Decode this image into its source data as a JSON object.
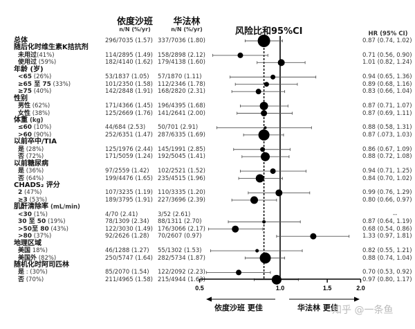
{
  "columns": {
    "edoxaban": {
      "title": "依度沙班",
      "sub": "n/N (%/yr)"
    },
    "warfarin": {
      "title": "华法林",
      "sub": "n/N (%/yr)"
    },
    "plot_title": "风险比和95%CI",
    "hr": {
      "title": "HR (95%  CI)"
    }
  },
  "rows": [
    {
      "label": "总体",
      "pct": "",
      "type": "group",
      "edo": "296/7035  (1.57)",
      "war": "337/7036  (1.80)",
      "hr_text": "0.87 (0.74, 1.02)",
      "hr": 0.87,
      "lo": 0.74,
      "hi": 1.02,
      "size": 9
    },
    {
      "label": "随后化时维生素K拮抗剂",
      "pct": "",
      "type": "group"
    },
    {
      "label": "未用过",
      "pct": "(41%)",
      "type": "sub",
      "edo": "114/2895  (1.49)",
      "war": "158/2898  (2.12)",
      "hr_text": "0.71 (0.56, 0.90)",
      "hr": 0.71,
      "lo": 0.56,
      "hi": 0.9,
      "size": 4
    },
    {
      "label": "使用过",
      "pct": " (59%)",
      "type": "sub",
      "edo": "182/4140  (1.62)",
      "war": "179/4138  (1.60)",
      "hr_text": "1.01 (0.82, 1.24)",
      "hr": 1.01,
      "lo": 0.82,
      "hi": 1.24,
      "size": 5
    },
    {
      "label": "年龄 (岁)",
      "pct": "",
      "type": "group"
    },
    {
      "label": "<65",
      "pct": " (26%)",
      "type": "sub",
      "edo": "53/1837  (1.05)",
      "war": "57/1870  (1.11)",
      "hr_text": "0.94 (0.65, 1.36)",
      "hr": 0.94,
      "lo": 0.65,
      "hi": 1.36,
      "size": 3.5
    },
    {
      "label": "≥65 至 75",
      "pct": " (33%)",
      "type": "sub",
      "edo": "101/2350  (1.58)",
      "war": "112/2346  (1.78)",
      "hr_text": "0.89 (0.68, 1.16)",
      "hr": 0.89,
      "lo": 0.68,
      "hi": 1.16,
      "size": 3.5
    },
    {
      "label": "≥75",
      "pct": " (40%)",
      "type": "sub",
      "edo": "142/2848  (1.91)",
      "war": "168/2820  (2.31)",
      "hr_text": "0.83 (0.66, 1.04)",
      "hr": 0.83,
      "lo": 0.66,
      "hi": 1.04,
      "size": 4
    },
    {
      "label": "性别",
      "pct": "",
      "type": "group"
    },
    {
      "label": "男性",
      "pct": " (62%)",
      "type": "sub",
      "edo": "171/4366  (1.45)",
      "war": "196/4395  (1.68)",
      "hr_text": "0.87 (0.71, 1.07)",
      "hr": 0.87,
      "lo": 0.71,
      "hi": 1.07,
      "size": 6
    },
    {
      "label": "女性",
      "pct": " (38%)",
      "type": "sub",
      "edo": "125/2669  (1.76)",
      "war": "141/2641  (2.00)",
      "hr_text": "0.87 (0.69, 1.11)",
      "hr": 0.87,
      "lo": 0.69,
      "hi": 1.11,
      "size": 4.5
    },
    {
      "label": "体重",
      "pct": " (kg)",
      "type": "group"
    },
    {
      "label": "≤60",
      "pct": " (10%)",
      "type": "sub",
      "edo": "44/684  (2.53)",
      "war": "50/701  (2.91)",
      "hr_text": "0.88 (0.58, 1.31)",
      "hr": 0.88,
      "lo": 0.58,
      "hi": 1.31,
      "size": 2
    },
    {
      "label": ">60",
      "pct": " (90%)",
      "type": "sub",
      "edo": "252/6351  (1.47)",
      "war": "287/6335  (1.69)",
      "hr_text": "0.87 (.073, 1.03)",
      "hr": 0.87,
      "lo": 0.73,
      "hi": 1.03,
      "size": 8
    },
    {
      "label": "以前卒中/TIA",
      "pct": "",
      "type": "group"
    },
    {
      "label": "是",
      "pct": "  (28%)",
      "type": "sub",
      "edo": "125/1976  (2.44)",
      "war": "145/1991  (2.85)",
      "hr_text": "0.86 (0.67, 1.09)",
      "hr": 0.86,
      "lo": 0.67,
      "hi": 1.09,
      "size": 3.5
    },
    {
      "label": "否",
      "pct": " (72%)",
      "type": "sub",
      "edo": "171/5059  (1.24)",
      "war": "192/5045  (1.41)",
      "hr_text": "0.88 (0.72, 1.08)",
      "hr": 0.88,
      "lo": 0.72,
      "hi": 1.08,
      "size": 6.5
    },
    {
      "label": "以前糖尿病",
      "pct": "",
      "type": "group"
    },
    {
      "label": "是",
      "pct": "  (36%)",
      "type": "sub",
      "edo": "97/2559  (1.42)",
      "war": "102/2521  (1.52)",
      "hr_text": "0.94 (0.71, 1.25)",
      "hr": 0.94,
      "lo": 0.71,
      "hi": 1.25,
      "size": 4
    },
    {
      "label": "否",
      "pct": " (64%)",
      "type": "sub",
      "edo": "199/4476  (1.65)",
      "war": "235/4515  (1.96)",
      "hr_text": "0.84 (0.70, 1.02)",
      "hr": 0.84,
      "lo": 0.7,
      "hi": 1.02,
      "size": 6
    },
    {
      "label": "CHADS₂ 评分",
      "pct": "",
      "type": "group"
    },
    {
      "label": "2",
      "pct": " (47%)",
      "type": "sub",
      "edo": "107/3235  (1.19)",
      "war": "110/3335  (1.20)",
      "hr_text": "0.99 (0.76, 1.29)",
      "hr": 0.99,
      "lo": 0.76,
      "hi": 1.29,
      "size": 5
    },
    {
      "label": "≥3",
      "pct": " (53%)",
      "type": "sub",
      "edo": "189/3795  (1.91)",
      "war": "227/3696  (2.39)",
      "hr_text": "0.80 (0.66, 0.97)",
      "hr": 0.8,
      "lo": 0.66,
      "hi": 0.97,
      "size": 5.5
    },
    {
      "label": "肌酐清除率",
      "pct": " (mL/min)",
      "type": "group"
    },
    {
      "label": "<30",
      "pct": " (1%)",
      "type": "sub",
      "edo": "4/70  (2.41)",
      "war": "3/52  (2.61)",
      "hr_text": "--",
      "hr": null,
      "lo": null,
      "hi": null,
      "size": 0
    },
    {
      "label": "30 至 50",
      "pct": " (19%)",
      "type": "sub",
      "edo": "78/1309  (2.34)",
      "war": "88/1311  (2.70)",
      "hr_text": "0.87 (0.64, 1.19)",
      "hr": 0.87,
      "lo": 0.64,
      "hi": 1.19,
      "size": 2.5
    },
    {
      "label": ">50至 80",
      "pct": " (43%)",
      "type": "sub",
      "edo": "122/3030  (1.49)",
      "war": "176/3066  (2.17)",
      "hr_text": "0.68 (0.54, 0.86)",
      "hr": 0.68,
      "lo": 0.54,
      "hi": 0.86,
      "size": 5
    },
    {
      "label": ">80",
      "pct": " (37%)",
      "type": "sub",
      "edo": "92/2626  (1.28)",
      "war": "70/2607  (0.97)",
      "hr_text": "1.33 (0.97, 1.81)",
      "hr": 1.33,
      "lo": 0.97,
      "hi": 1.81,
      "size": 4.5
    },
    {
      "label": "地理区域",
      "pct": "",
      "type": "group"
    },
    {
      "label": "美国",
      "pct": " 18%)",
      "type": "sub",
      "edo": "46/1288  (1.27)",
      "war": "55/1302  (1.53)",
      "hr_text": "0.82 (0.55, 1.21)",
      "hr": 0.82,
      "lo": 0.55,
      "hi": 1.21,
      "size": 2.5
    },
    {
      "label": "美国外",
      "pct": " (82%)",
      "type": "sub",
      "edo": "250/5747  (1.64)",
      "war": "282/5734  (1.87)",
      "hr_text": "0.88 (0.74, 1.04)",
      "hr": 0.88,
      "lo": 0.74,
      "hi": 1.04,
      "size": 8
    },
    {
      "label": "随机化时阿司匹林",
      "pct": "",
      "type": "group"
    },
    {
      "label": "是",
      "pct": " : (30%)",
      "type": "sub",
      "edo": "85/2070  (1.54)",
      "war": "122/2092  (2.23)",
      "hr_text": "0.70 (0.53, 0.92)",
      "hr": 0.7,
      "lo": 0.53,
      "hi": 0.92,
      "size": 4
    },
    {
      "label": "否",
      "pct": " (70%)",
      "type": "sub",
      "edo": "211/4965  (1.58)",
      "war": "215/4944  (1.63)",
      "hr_text": "0.97 (0.80, 1.17)",
      "hr": 0.97,
      "lo": 0.8,
      "hi": 1.17,
      "size": 7
    }
  ],
  "axis": {
    "ticks": [
      "0.5",
      "1.0",
      "1.5",
      "2.0"
    ]
  },
  "footer": {
    "left": "依度沙班 更佳",
    "right": "华法林 更佳",
    "watermark": "知乎 @一条鱼"
  },
  "chart_data": {
    "type": "forest",
    "title": "风险比和95%CI",
    "xscale": "log",
    "xlim": [
      0.5,
      2.0
    ],
    "xticks": [
      0.5,
      1.0,
      1.5,
      2.0
    ],
    "reference_line": 1.0,
    "overall_line": 0.87,
    "xlabel_left": "依度沙班 更佳",
    "xlabel_right": "华法林 更佳",
    "categories": [
      "总体",
      "未用过VKA",
      "使用过VKA",
      "<65",
      "≥65至75",
      "≥75",
      "男性",
      "女性",
      "≤60kg",
      ">60kg",
      "以前卒中/TIA 是",
      "以前卒中/TIA 否",
      "糖尿病 是",
      "糖尿病 否",
      "CHADS2=2",
      "CHADS2≥3",
      "CrCl<30",
      "CrCl 30至50",
      "CrCl >50至80",
      "CrCl >80",
      "美国",
      "美国外",
      "阿司匹林 是",
      "阿司匹林 否"
    ],
    "series": [
      {
        "name": "HR",
        "values": [
          0.87,
          0.71,
          1.01,
          0.94,
          0.89,
          0.83,
          0.87,
          0.87,
          0.88,
          0.87,
          0.86,
          0.88,
          0.94,
          0.84,
          0.99,
          0.8,
          null,
          0.87,
          0.68,
          1.33,
          0.82,
          0.88,
          0.7,
          0.97
        ]
      },
      {
        "name": "CI_low",
        "values": [
          0.74,
          0.56,
          0.82,
          0.65,
          0.68,
          0.66,
          0.71,
          0.69,
          0.58,
          0.73,
          0.67,
          0.72,
          0.71,
          0.7,
          0.76,
          0.66,
          null,
          0.64,
          0.54,
          0.97,
          0.55,
          0.74,
          0.53,
          0.8
        ]
      },
      {
        "name": "CI_high",
        "values": [
          1.02,
          0.9,
          1.24,
          1.36,
          1.16,
          1.04,
          1.07,
          1.11,
          1.31,
          1.03,
          1.09,
          1.08,
          1.25,
          1.02,
          1.29,
          0.97,
          null,
          1.19,
          0.86,
          1.81,
          1.21,
          1.04,
          0.92,
          1.17
        ]
      }
    ]
  }
}
